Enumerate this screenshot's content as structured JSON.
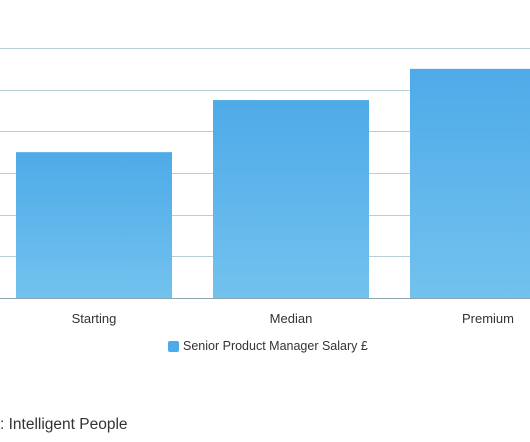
{
  "chart_data": {
    "type": "bar",
    "categories": [
      "Starting",
      "Median",
      "Premium"
    ],
    "series": [
      {
        "name": "Senior Product Manager Salary £",
        "values": [
          70000,
          95000,
          110000
        ]
      }
    ],
    "ylim": [
      0,
      120000
    ],
    "grid": true,
    "legend_position": "bottom",
    "colors": {
      "bar_top": "#4eaae8",
      "bar_bottom": "#72c2ee",
      "grid": "#b8cfd8",
      "axis": "#8fa6b0"
    }
  },
  "source_text": ": Intelligent People"
}
